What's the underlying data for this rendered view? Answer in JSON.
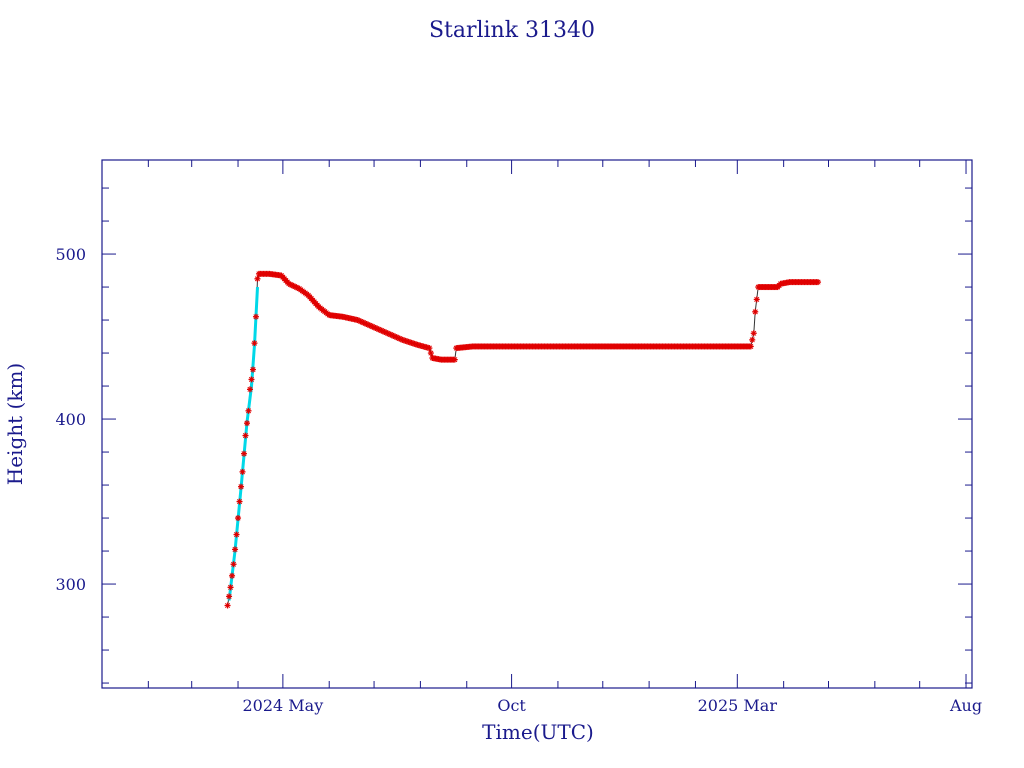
{
  "chart_data": {
    "type": "scatter",
    "title": "Starlink 31340",
    "xlabel": "Time(UTC)",
    "ylabel": "Height (km)",
    "ylim": [
      237,
      557
    ],
    "xlim": [
      "2024-01-01",
      "2025-08-05"
    ],
    "x_ticks": [
      {
        "date": "2024-05-01",
        "label": "2024 May"
      },
      {
        "date": "2024-10-01",
        "label": "Oct"
      },
      {
        "date": "2025-03-01",
        "label": "2025 Mar"
      },
      {
        "date": "2025-08-01",
        "label": "Aug"
      }
    ],
    "y_ticks": [
      300,
      400,
      500
    ],
    "grid": false,
    "colors": {
      "axis": "#1a1a8c",
      "points": "#e00000",
      "line": "#333333",
      "raising": "#00d8e8"
    },
    "series": [
      {
        "points": [
          [
            "2024-03-25",
            287
          ],
          [
            "2024-03-27",
            298
          ],
          [
            "2024-03-29",
            312
          ],
          [
            "2024-03-31",
            330
          ],
          [
            "2024-04-02",
            350
          ],
          [
            "2024-04-04",
            368
          ],
          [
            "2024-04-06",
            390
          ],
          [
            "2024-04-08",
            405
          ],
          [
            "2024-04-09",
            418
          ],
          [
            "2024-04-11",
            430
          ],
          [
            "2024-04-13",
            462
          ],
          [
            "2024-04-14",
            485
          ],
          [
            "2024-04-15",
            488
          ],
          [
            "2024-04-22",
            488
          ],
          [
            "2024-04-30",
            487
          ],
          [
            "2024-05-05",
            482
          ],
          [
            "2024-05-12",
            479
          ],
          [
            "2024-05-18",
            475
          ],
          [
            "2024-05-25",
            468
          ],
          [
            "2024-06-01",
            463
          ],
          [
            "2024-06-10",
            462
          ],
          [
            "2024-06-20",
            460
          ],
          [
            "2024-06-30",
            456
          ],
          [
            "2024-07-10",
            452
          ],
          [
            "2024-07-20",
            448
          ],
          [
            "2024-07-30",
            445
          ],
          [
            "2024-08-07",
            443
          ],
          [
            "2024-08-09",
            437
          ],
          [
            "2024-08-15",
            436
          ],
          [
            "2024-08-24",
            436
          ],
          [
            "2024-08-25",
            443
          ],
          [
            "2024-09-05",
            444
          ],
          [
            "2024-10-01",
            444
          ],
          [
            "2024-11-01",
            444
          ],
          [
            "2024-12-01",
            444
          ],
          [
            "2025-01-01",
            444
          ],
          [
            "2025-02-01",
            444
          ],
          [
            "2025-03-10",
            444
          ],
          [
            "2025-03-12",
            452
          ],
          [
            "2025-03-13",
            465
          ],
          [
            "2025-03-15",
            480
          ],
          [
            "2025-03-20",
            480
          ],
          [
            "2025-03-28",
            480
          ],
          [
            "2025-03-30",
            482
          ],
          [
            "2025-04-05",
            483
          ],
          [
            "2025-04-15",
            483
          ],
          [
            "2025-04-24",
            483
          ]
        ]
      }
    ],
    "raising_segment": [
      [
        "2024-03-26",
        290
      ],
      [
        "2024-03-30",
        320
      ],
      [
        "2024-04-03",
        358
      ],
      [
        "2024-04-07",
        398
      ],
      [
        "2024-04-10",
        420
      ],
      [
        "2024-04-12",
        445
      ],
      [
        "2024-04-14",
        480
      ]
    ]
  }
}
